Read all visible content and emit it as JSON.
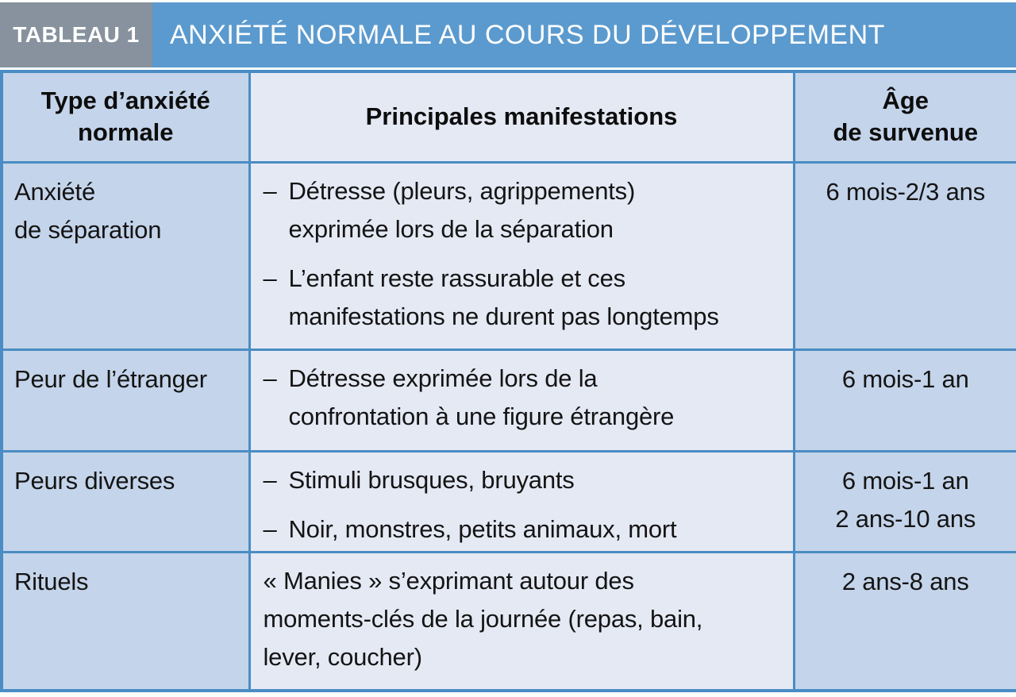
{
  "label": "TABLEAU 1",
  "title": "ANXIÉTÉ NORMALE AU COURS DU DÉVELOPPEMENT",
  "bullet_dash": "–",
  "columns": [
    "Type d’anxiété\nnormale",
    "Principales manifestations",
    "Âge\nde survenue"
  ],
  "rows": [
    {
      "anxiety_type": "Anxiété\nde séparation",
      "bulleted": true,
      "manifestations": [
        "Détresse (pleurs, agrippements)\nexprimée lors de la séparation",
        "L’enfant reste rassurable et ces\nmanifestations ne durent pas longtemps"
      ],
      "ages": [
        "6 mois-2/3 ans"
      ]
    },
    {
      "anxiety_type": "Peur de l’étranger",
      "bulleted": true,
      "manifestations": [
        "Détresse exprimée lors de la\nconfrontation à une figure étrangère"
      ],
      "ages": [
        "6 mois-1 an"
      ]
    },
    {
      "anxiety_type": "Peurs diverses",
      "bulleted": true,
      "manifestations": [
        "Stimuli brusques, bruyants",
        "Noir, monstres, petits animaux, mort"
      ],
      "ages": [
        "6 mois-1 an",
        "2 ans-10 ans"
      ]
    },
    {
      "anxiety_type": "Rituels",
      "bulleted": false,
      "manifestations": [
        "« Manies » s’exprimant autour des\nmoments-clés de la journée (repas, bain,\nlever, coucher)"
      ],
      "ages": [
        "2 ans-8 ans"
      ]
    }
  ],
  "colors": {
    "band_blue": "#5B9ACE",
    "label_gray": "#87929E",
    "border_blue": "#4A8CC4",
    "cell_blue": "#C4D4EA",
    "cell_light": "#E5E9F4",
    "text_dark": "#141414",
    "text_white": "#FFFFFF"
  }
}
